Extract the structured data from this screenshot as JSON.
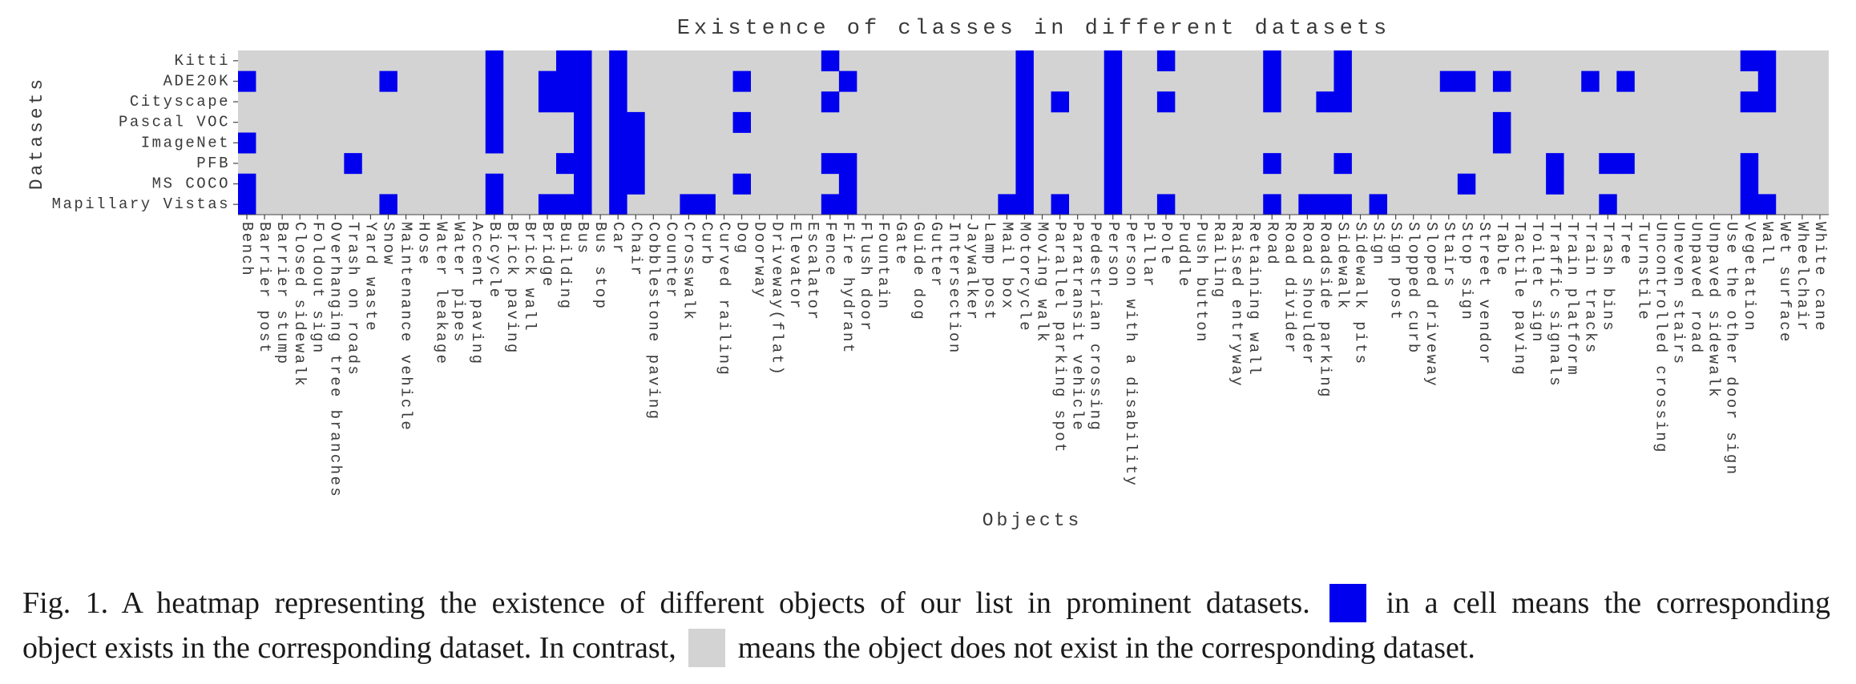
{
  "chart_data": {
    "type": "heatmap",
    "title": "Existence of classes in different datasets",
    "xlabel": "Objects",
    "ylabel": "Datasets",
    "colors": {
      "present": "#0000ee",
      "absent": "#d3d3d3"
    },
    "datasets": [
      "Kitti",
      "ADE20K",
      "Cityscape",
      "Pascal VOC",
      "ImageNet",
      "PFB",
      "MS COCO",
      "Mapillary Vistas"
    ],
    "objects": [
      "Bench",
      "Barrier post",
      "Barrier stump",
      "Closed sidewalk",
      "Foldout sign",
      "Overhanging tree branches",
      "Trash on roads",
      "Yard waste",
      "Snow",
      "Maintenance vehicle",
      "Hose",
      "Water leakage",
      "Water pipes",
      "Accent paving",
      "Bicycle",
      "Brick paving",
      "Brick wall",
      "Bridge",
      "Building",
      "Bus",
      "Bus stop",
      "Car",
      "Chair",
      "Cobblestone paving",
      "Counter",
      "Crosswalk",
      "Curb",
      "Curved railing",
      "Dog",
      "Doorway",
      "Driveway(flat)",
      "Elevator",
      "Escalator",
      "Fence",
      "Fire hydrant",
      "Flush door",
      "Fountain",
      "Gate",
      "Guide dog",
      "Gutter",
      "Intersection",
      "Jaywalker",
      "Lamp post",
      "Mail box",
      "Motorcycle",
      "Moving walk",
      "Parallel parking spot",
      "Paratransit vehicle",
      "Pedestrian crossing",
      "Person",
      "Person with a disability",
      "Pillar",
      "Pole",
      "Puddle",
      "Push button",
      "Railing",
      "Raised entryway",
      "Retaining wall",
      "Road",
      "Road divider",
      "Road shoulder",
      "Roadside parking",
      "Sidewalk",
      "Sidewalk pits",
      "Sign",
      "Sign post",
      "Slopped curb",
      "Sloped driveway",
      "Stairs",
      "Stop sign",
      "Street vendor",
      "Table",
      "Tactile paving",
      "Toilet sign",
      "Traffic signals",
      "Train platform",
      "Train tracks",
      "Trash bins",
      "Tree",
      "Turnstile",
      "Uncontrolled crossing",
      "Uneven stairs",
      "Unpaved road",
      "Unpaved sidewalk",
      "Use the other door sign",
      "Vegetation",
      "Wall",
      "Wet surface",
      "Wheelchair",
      "White cane"
    ],
    "values": [
      [
        0,
        0,
        0,
        0,
        0,
        0,
        0,
        0,
        0,
        0,
        0,
        0,
        0,
        0,
        1,
        0,
        0,
        0,
        1,
        1,
        0,
        1,
        0,
        0,
        0,
        0,
        0,
        0,
        0,
        0,
        0,
        0,
        0,
        1,
        0,
        0,
        0,
        0,
        0,
        0,
        0,
        0,
        0,
        0,
        1,
        0,
        0,
        0,
        0,
        1,
        0,
        0,
        1,
        0,
        0,
        0,
        0,
        0,
        1,
        0,
        0,
        0,
        1,
        0,
        0,
        0,
        0,
        0,
        0,
        0,
        0,
        0,
        0,
        0,
        0,
        0,
        0,
        0,
        0,
        0,
        0,
        0,
        0,
        0,
        0,
        1,
        1,
        0,
        0,
        0
      ],
      [
        1,
        0,
        0,
        0,
        0,
        0,
        0,
        0,
        1,
        0,
        0,
        0,
        0,
        0,
        1,
        0,
        0,
        1,
        1,
        1,
        0,
        1,
        0,
        0,
        0,
        0,
        0,
        0,
        1,
        0,
        0,
        0,
        0,
        0,
        1,
        0,
        0,
        0,
        0,
        0,
        0,
        0,
        0,
        0,
        1,
        0,
        0,
        0,
        0,
        1,
        0,
        0,
        0,
        0,
        0,
        0,
        0,
        0,
        1,
        0,
        0,
        0,
        1,
        0,
        0,
        0,
        0,
        0,
        1,
        1,
        0,
        1,
        0,
        0,
        0,
        0,
        1,
        0,
        1,
        0,
        0,
        0,
        0,
        0,
        0,
        0,
        1,
        0,
        0,
        0
      ],
      [
        0,
        0,
        0,
        0,
        0,
        0,
        0,
        0,
        0,
        0,
        0,
        0,
        0,
        0,
        1,
        0,
        0,
        1,
        1,
        1,
        0,
        1,
        0,
        0,
        0,
        0,
        0,
        0,
        0,
        0,
        0,
        0,
        0,
        1,
        0,
        0,
        0,
        0,
        0,
        0,
        0,
        0,
        0,
        0,
        1,
        0,
        1,
        0,
        0,
        1,
        0,
        0,
        1,
        0,
        0,
        0,
        0,
        0,
        1,
        0,
        0,
        1,
        1,
        0,
        0,
        0,
        0,
        0,
        0,
        0,
        0,
        0,
        0,
        0,
        0,
        0,
        0,
        0,
        0,
        0,
        0,
        0,
        0,
        0,
        0,
        1,
        1,
        0,
        0,
        0
      ],
      [
        0,
        0,
        0,
        0,
        0,
        0,
        0,
        0,
        0,
        0,
        0,
        0,
        0,
        0,
        1,
        0,
        0,
        0,
        0,
        1,
        0,
        1,
        1,
        0,
        0,
        0,
        0,
        0,
        1,
        0,
        0,
        0,
        0,
        0,
        0,
        0,
        0,
        0,
        0,
        0,
        0,
        0,
        0,
        0,
        1,
        0,
        0,
        0,
        0,
        1,
        0,
        0,
        0,
        0,
        0,
        0,
        0,
        0,
        0,
        0,
        0,
        0,
        0,
        0,
        0,
        0,
        0,
        0,
        0,
        0,
        0,
        1,
        0,
        0,
        0,
        0,
        0,
        0,
        0,
        0,
        0,
        0,
        0,
        0,
        0,
        0,
        0,
        0,
        0,
        0
      ],
      [
        1,
        0,
        0,
        0,
        0,
        0,
        0,
        0,
        0,
        0,
        0,
        0,
        0,
        0,
        1,
        0,
        0,
        0,
        0,
        1,
        0,
        1,
        1,
        0,
        0,
        0,
        0,
        0,
        0,
        0,
        0,
        0,
        0,
        0,
        0,
        0,
        0,
        0,
        0,
        0,
        0,
        0,
        0,
        0,
        1,
        0,
        0,
        0,
        0,
        1,
        0,
        0,
        0,
        0,
        0,
        0,
        0,
        0,
        0,
        0,
        0,
        0,
        0,
        0,
        0,
        0,
        0,
        0,
        0,
        0,
        0,
        1,
        0,
        0,
        0,
        0,
        0,
        0,
        0,
        0,
        0,
        0,
        0,
        0,
        0,
        0,
        0,
        0,
        0,
        0
      ],
      [
        0,
        0,
        0,
        0,
        0,
        0,
        1,
        0,
        0,
        0,
        0,
        0,
        0,
        0,
        0,
        0,
        0,
        0,
        1,
        1,
        0,
        1,
        1,
        0,
        0,
        0,
        0,
        0,
        0,
        0,
        0,
        0,
        0,
        1,
        1,
        0,
        0,
        0,
        0,
        0,
        0,
        0,
        0,
        0,
        1,
        0,
        0,
        0,
        0,
        1,
        0,
        0,
        0,
        0,
        0,
        0,
        0,
        0,
        1,
        0,
        0,
        0,
        1,
        0,
        0,
        0,
        0,
        0,
        0,
        0,
        0,
        0,
        0,
        0,
        1,
        0,
        0,
        1,
        1,
        0,
        0,
        0,
        0,
        0,
        0,
        1,
        0,
        0,
        0,
        0
      ],
      [
        1,
        0,
        0,
        0,
        0,
        0,
        0,
        0,
        0,
        0,
        0,
        0,
        0,
        0,
        1,
        0,
        0,
        0,
        0,
        1,
        0,
        1,
        1,
        0,
        0,
        0,
        0,
        0,
        1,
        0,
        0,
        0,
        0,
        0,
        1,
        0,
        0,
        0,
        0,
        0,
        0,
        0,
        0,
        0,
        1,
        0,
        0,
        0,
        0,
        1,
        0,
        0,
        0,
        0,
        0,
        0,
        0,
        0,
        0,
        0,
        0,
        0,
        0,
        0,
        0,
        0,
        0,
        0,
        0,
        1,
        0,
        0,
        0,
        0,
        1,
        0,
        0,
        0,
        0,
        0,
        0,
        0,
        0,
        0,
        0,
        1,
        0,
        0,
        0,
        0
      ],
      [
        1,
        0,
        0,
        0,
        0,
        0,
        0,
        0,
        1,
        0,
        0,
        0,
        0,
        0,
        1,
        0,
        0,
        1,
        1,
        1,
        0,
        1,
        0,
        0,
        0,
        1,
        1,
        0,
        0,
        0,
        0,
        0,
        0,
        1,
        1,
        0,
        0,
        0,
        0,
        0,
        0,
        0,
        0,
        1,
        1,
        0,
        1,
        0,
        0,
        1,
        0,
        0,
        1,
        0,
        0,
        0,
        0,
        0,
        1,
        0,
        1,
        1,
        1,
        0,
        1,
        0,
        0,
        0,
        0,
        0,
        0,
        0,
        0,
        0,
        0,
        0,
        0,
        1,
        0,
        0,
        0,
        0,
        0,
        0,
        0,
        1,
        1,
        0,
        0,
        0
      ]
    ]
  },
  "caption": {
    "line1_a": "Fig. 1.  A heatmap representing the existence of different objects of our list in prominent datasets.",
    "line1_b": "in a cell means the corresponding",
    "line2_a": "object exists in the corresponding dataset. In contrast,",
    "line2_b": "means the object does not exist in the corresponding dataset."
  }
}
